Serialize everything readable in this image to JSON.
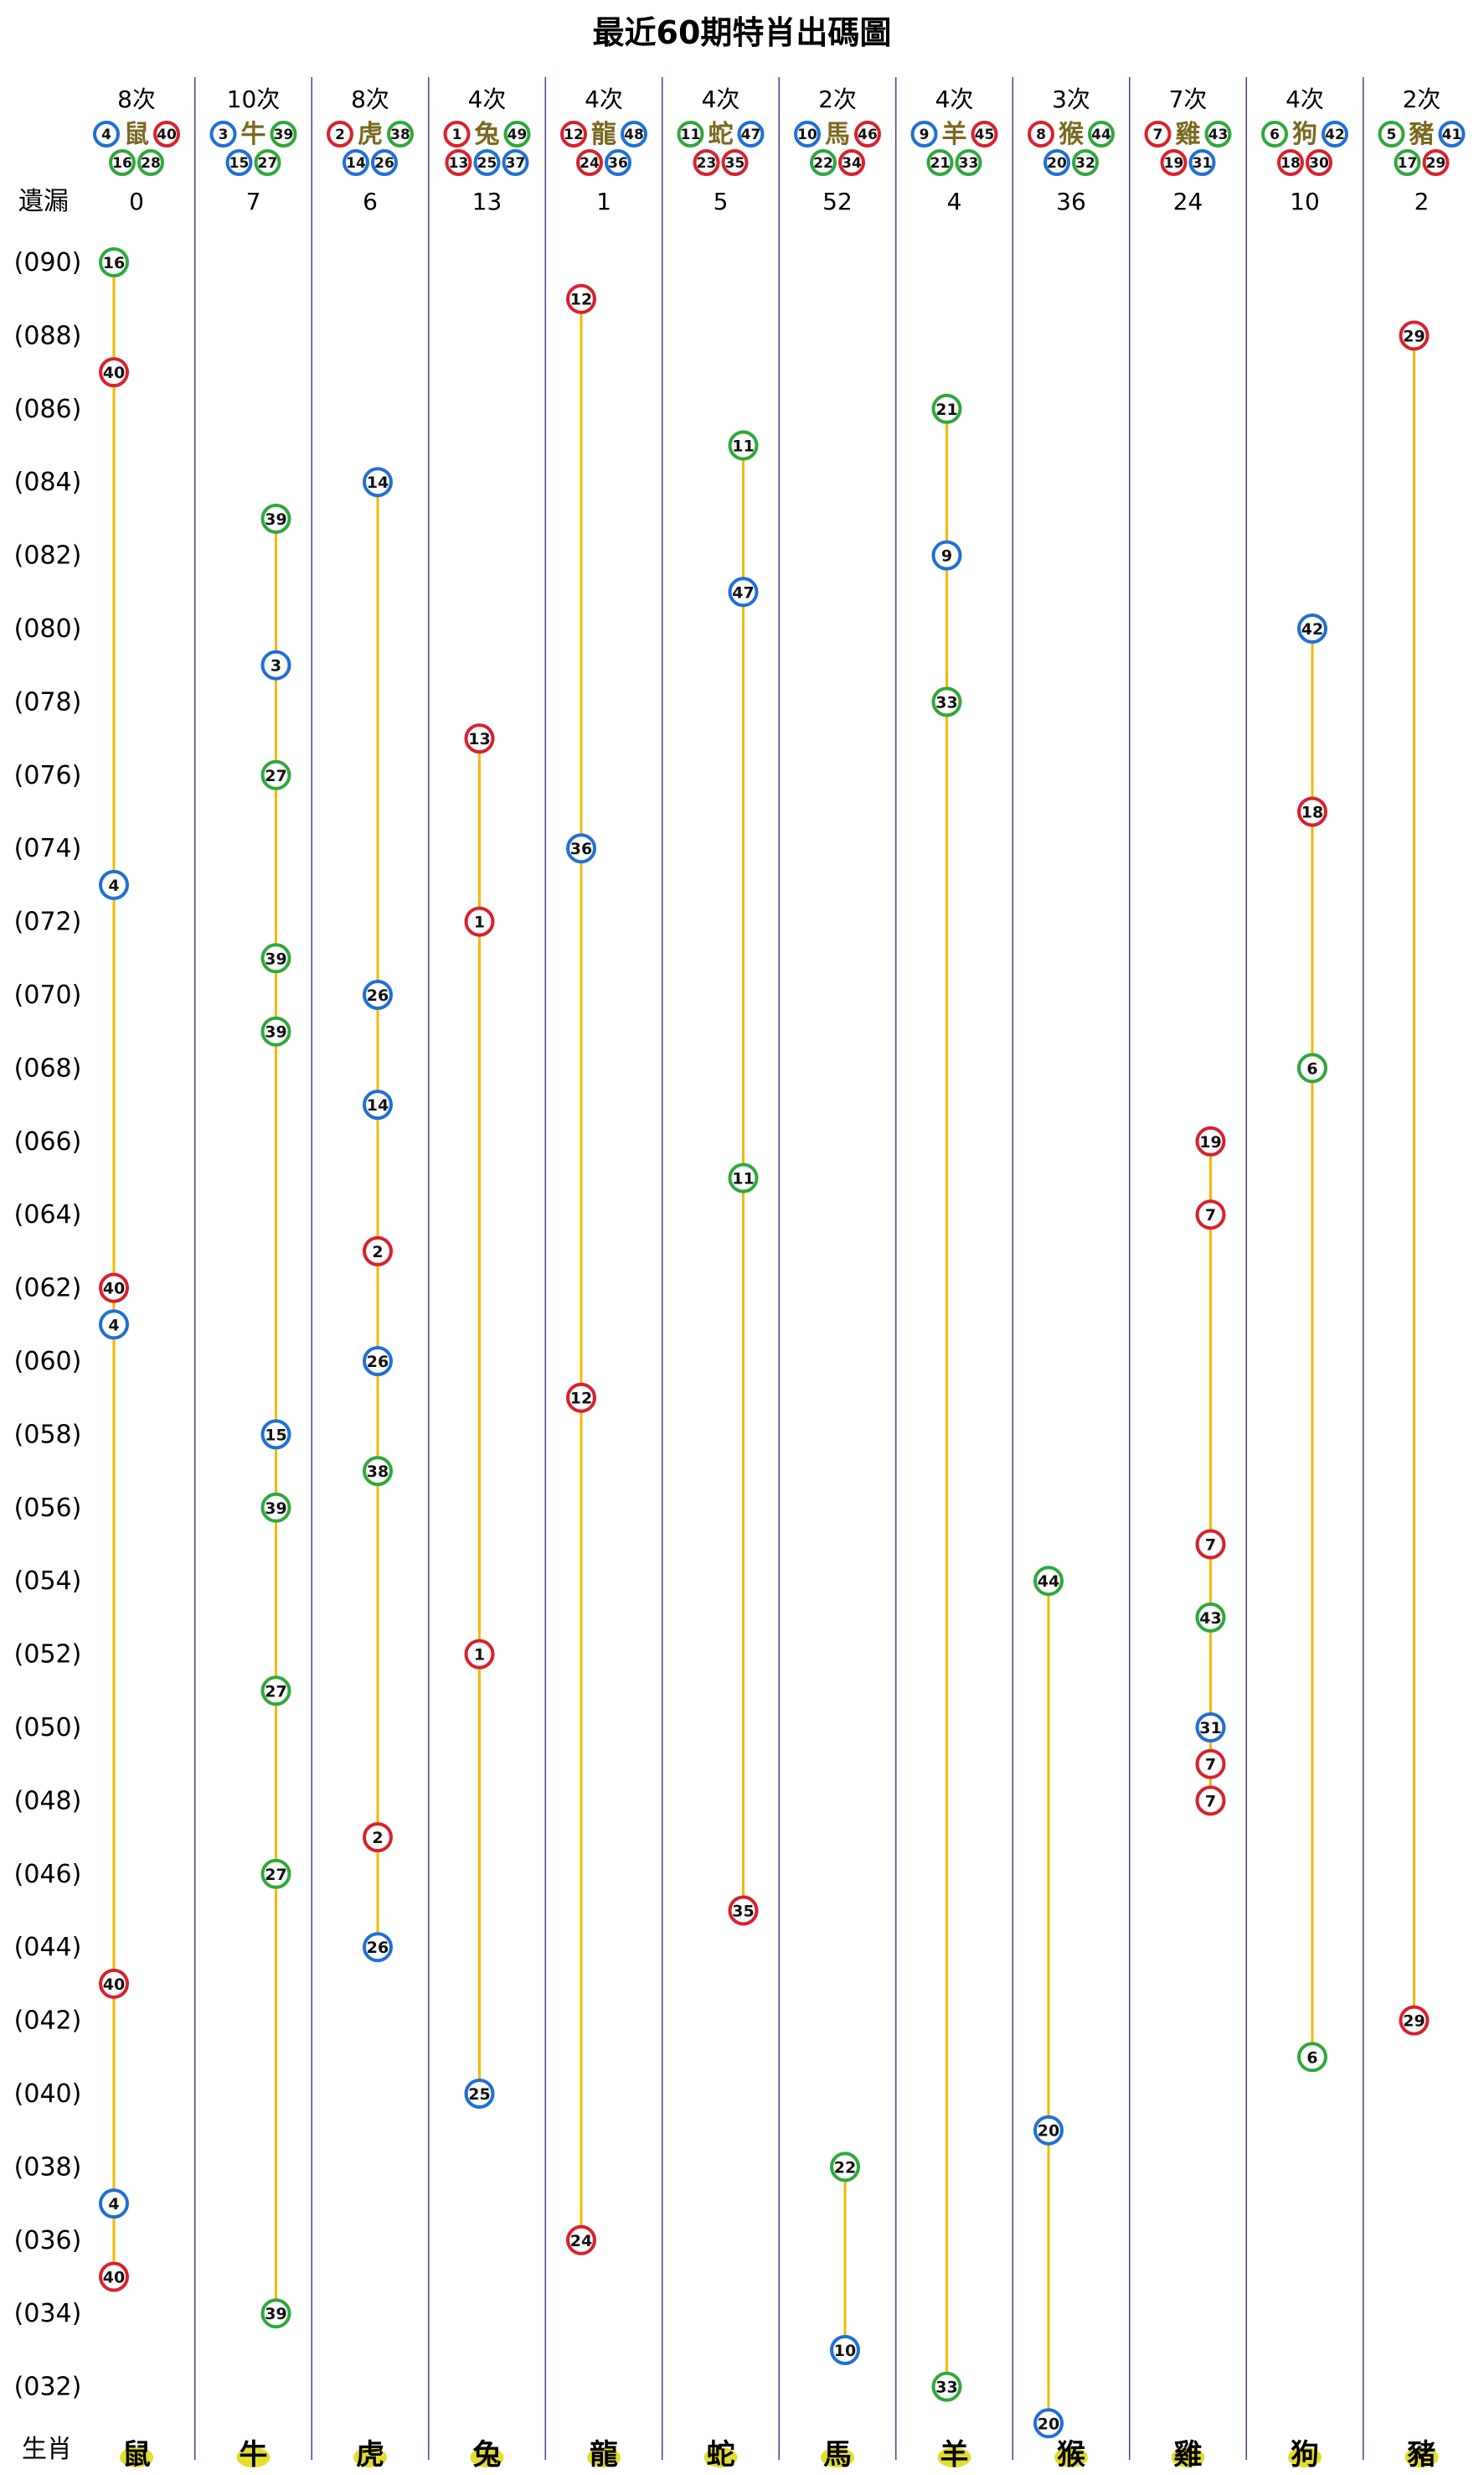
{
  "chart_data": {
    "type": "scatter",
    "title": "最近60期特肖出碼圖",
    "miss_label": "遺漏",
    "footer_label": "生肖",
    "periods": [
      "(090)",
      "(088)",
      "(086)",
      "(084)",
      "(082)",
      "(080)",
      "(078)",
      "(076)",
      "(074)",
      "(072)",
      "(070)",
      "(068)",
      "(066)",
      "(064)",
      "(062)",
      "(060)",
      "(058)",
      "(056)",
      "(054)",
      "(052)",
      "(050)",
      "(048)",
      "(046)",
      "(044)",
      "(042)",
      "(040)",
      "(038)",
      "(036)",
      "(034)",
      "(032)"
    ],
    "period_range": [
      31,
      90
    ],
    "zodiacs": [
      {
        "name": "鼠",
        "count": "8次",
        "numbers": [
          4,
          40,
          16,
          28
        ],
        "miss": "0",
        "hits": [
          [
            90,
            16
          ],
          [
            87,
            40
          ],
          [
            73,
            4
          ],
          [
            62,
            40
          ],
          [
            61,
            4
          ],
          [
            43,
            40
          ],
          [
            37,
            4
          ],
          [
            35,
            40
          ]
        ]
      },
      {
        "name": "牛",
        "count": "10次",
        "numbers": [
          3,
          39,
          15,
          27
        ],
        "miss": "7",
        "hits": [
          [
            83,
            39
          ],
          [
            79,
            3
          ],
          [
            76,
            27
          ],
          [
            71,
            39
          ],
          [
            69,
            39
          ],
          [
            58,
            15
          ],
          [
            56,
            39
          ],
          [
            51,
            27
          ],
          [
            46,
            27
          ],
          [
            34,
            39
          ]
        ]
      },
      {
        "name": "虎",
        "count": "8次",
        "numbers": [
          2,
          38,
          14,
          26
        ],
        "miss": "6",
        "hits": [
          [
            84,
            14
          ],
          [
            70,
            26
          ],
          [
            67,
            14
          ],
          [
            63,
            2
          ],
          [
            60,
            26
          ],
          [
            57,
            38
          ],
          [
            47,
            2
          ],
          [
            44,
            26
          ]
        ]
      },
      {
        "name": "兔",
        "count": "4次",
        "numbers": [
          1,
          49,
          13,
          25,
          37
        ],
        "miss": "13",
        "hits": [
          [
            77,
            13
          ],
          [
            72,
            1
          ],
          [
            52,
            1
          ],
          [
            40,
            25
          ]
        ]
      },
      {
        "name": "龍",
        "count": "4次",
        "numbers": [
          12,
          48,
          24,
          36
        ],
        "miss": "1",
        "hits": [
          [
            89,
            12
          ],
          [
            74,
            36
          ],
          [
            59,
            12
          ],
          [
            36,
            24
          ]
        ]
      },
      {
        "name": "蛇",
        "count": "4次",
        "numbers": [
          11,
          47,
          23,
          35
        ],
        "miss": "5",
        "hits": [
          [
            85,
            11
          ],
          [
            81,
            47
          ],
          [
            65,
            11
          ],
          [
            45,
            35
          ]
        ]
      },
      {
        "name": "馬",
        "count": "2次",
        "numbers": [
          10,
          46,
          22,
          34
        ],
        "miss": "52",
        "hits": [
          [
            38,
            22
          ],
          [
            33,
            10
          ]
        ]
      },
      {
        "name": "羊",
        "count": "4次",
        "numbers": [
          9,
          45,
          21,
          33
        ],
        "miss": "4",
        "hits": [
          [
            86,
            21
          ],
          [
            82,
            9
          ],
          [
            78,
            33
          ],
          [
            32,
            33
          ]
        ]
      },
      {
        "name": "猴",
        "count": "3次",
        "numbers": [
          8,
          44,
          20,
          32
        ],
        "miss": "36",
        "hits": [
          [
            54,
            44
          ],
          [
            39,
            20
          ],
          [
            31,
            20
          ]
        ]
      },
      {
        "name": "雞",
        "count": "7次",
        "numbers": [
          7,
          43,
          19,
          31
        ],
        "miss": "24",
        "hits": [
          [
            66,
            19
          ],
          [
            64,
            7
          ],
          [
            55,
            7
          ],
          [
            53,
            43
          ],
          [
            50,
            31
          ],
          [
            49,
            7
          ],
          [
            48,
            7
          ]
        ]
      },
      {
        "name": "狗",
        "count": "4次",
        "numbers": [
          6,
          42,
          18,
          30
        ],
        "miss": "10",
        "hits": [
          [
            80,
            42
          ],
          [
            75,
            18
          ],
          [
            68,
            6
          ],
          [
            41,
            6
          ]
        ]
      },
      {
        "name": "豬",
        "count": "2次",
        "numbers": [
          5,
          41,
          17,
          29
        ],
        "miss": "2",
        "hits": [
          [
            88,
            29
          ],
          [
            42,
            29
          ]
        ]
      }
    ],
    "colors": {
      "red_numbers": [
        1,
        2,
        7,
        8,
        12,
        13,
        18,
        19,
        23,
        24,
        29,
        30,
        34,
        35,
        40,
        45,
        46
      ],
      "blue_numbers": [
        3,
        4,
        9,
        10,
        14,
        15,
        20,
        25,
        26,
        31,
        36,
        37,
        41,
        42,
        47,
        48
      ],
      "green_numbers": [
        5,
        6,
        11,
        16,
        17,
        21,
        22,
        27,
        28,
        32,
        33,
        38,
        39,
        43,
        44,
        49
      ],
      "red": "#d9212b",
      "blue": "#1f6fd6",
      "green": "#2fa83a",
      "line": "#f5b800",
      "divider": "#5a3b8c",
      "zodiac_text": "#7a6a20",
      "footer_ball": "#e3dd2e"
    }
  }
}
